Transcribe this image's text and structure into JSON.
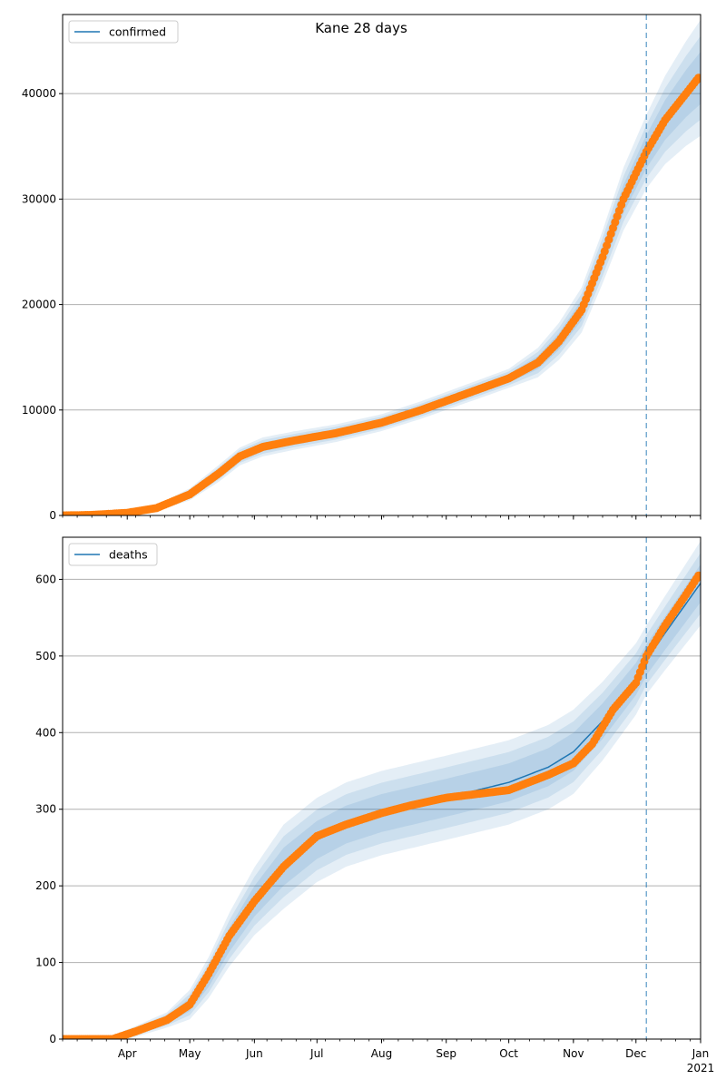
{
  "title": "Kane 28 days",
  "colors": {
    "line": "#1f77b4",
    "points": "#ff7f0e",
    "band": "#1f77b4",
    "grid": "#b0b0b0",
    "vline": "#1f77b4"
  },
  "x_axis": {
    "month_labels": [
      "Apr",
      "May",
      "Jun",
      "Jul",
      "Aug",
      "Sep",
      "Oct",
      "Nov",
      "Dec",
      "Jan"
    ],
    "year_label": "2021"
  },
  "chart_data": [
    {
      "type": "line",
      "title": "Kane 28 days",
      "series": [
        {
          "name": "confirmed"
        }
      ],
      "legend": "top-left",
      "grid": "y",
      "xlim": [
        "2020-03-01",
        "2021-01-01"
      ],
      "ylim": [
        0,
        47500
      ],
      "yticks": [
        0,
        10000,
        20000,
        30000,
        40000
      ],
      "forecast_start": "2020-12-06",
      "fit_knots": [
        [
          "2020-03-01",
          0
        ],
        [
          "2020-03-15",
          50
        ],
        [
          "2020-04-01",
          250
        ],
        [
          "2020-04-15",
          700
        ],
        [
          "2020-05-01",
          2000
        ],
        [
          "2020-05-15",
          4000
        ],
        [
          "2020-05-25",
          5600
        ],
        [
          "2020-06-05",
          6500
        ],
        [
          "2020-06-20",
          7100
        ],
        [
          "2020-07-10",
          7800
        ],
        [
          "2020-08-01",
          8800
        ],
        [
          "2020-08-20",
          10000
        ],
        [
          "2020-09-10",
          11500
        ],
        [
          "2020-10-01",
          13000
        ],
        [
          "2020-10-15",
          14500
        ],
        [
          "2020-10-25",
          16500
        ],
        [
          "2020-11-05",
          19500
        ],
        [
          "2020-11-15",
          24500
        ],
        [
          "2020-11-25",
          30000
        ],
        [
          "2020-12-06",
          34500
        ],
        [
          "2020-12-15",
          37500
        ],
        [
          "2020-12-25",
          40000
        ],
        [
          "2021-01-01",
          41500
        ]
      ],
      "observed_knots": [
        [
          "2020-03-01",
          0
        ],
        [
          "2020-03-15",
          50
        ],
        [
          "2020-04-01",
          250
        ],
        [
          "2020-04-15",
          700
        ],
        [
          "2020-05-01",
          2000
        ],
        [
          "2020-05-15",
          4000
        ],
        [
          "2020-05-25",
          5600
        ],
        [
          "2020-06-05",
          6500
        ],
        [
          "2020-06-20",
          7100
        ],
        [
          "2020-07-10",
          7800
        ],
        [
          "2020-08-01",
          8800
        ],
        [
          "2020-08-20",
          10000
        ],
        [
          "2020-09-10",
          11500
        ],
        [
          "2020-10-01",
          13000
        ],
        [
          "2020-10-15",
          14500
        ],
        [
          "2020-10-25",
          16500
        ],
        [
          "2020-11-05",
          19500
        ],
        [
          "2020-11-15",
          24500
        ],
        [
          "2020-11-25",
          30000
        ],
        [
          "2020-12-06",
          34500
        ],
        [
          "2020-12-15",
          37500
        ],
        [
          "2020-12-25",
          40000
        ],
        [
          "2020-12-31",
          41500
        ]
      ],
      "band_halfwidths": [
        [
          "2020-03-01",
          0
        ],
        [
          "2020-04-15",
          300
        ],
        [
          "2020-05-15",
          800
        ],
        [
          "2020-06-05",
          900
        ],
        [
          "2020-08-01",
          800
        ],
        [
          "2020-10-01",
          900
        ],
        [
          "2020-11-15",
          2500
        ],
        [
          "2020-12-06",
          3500
        ],
        [
          "2021-01-01",
          5500
        ]
      ]
    },
    {
      "type": "line",
      "series": [
        {
          "name": "deaths"
        }
      ],
      "legend": "top-left",
      "grid": "y",
      "xlim": [
        "2020-03-01",
        "2021-01-01"
      ],
      "ylim": [
        0,
        655
      ],
      "yticks": [
        0,
        100,
        200,
        300,
        400,
        500,
        600
      ],
      "forecast_start": "2020-12-06",
      "fit_knots": [
        [
          "2020-03-01",
          0
        ],
        [
          "2020-03-25",
          0
        ],
        [
          "2020-04-05",
          10
        ],
        [
          "2020-04-20",
          25
        ],
        [
          "2020-05-01",
          45
        ],
        [
          "2020-05-10",
          80
        ],
        [
          "2020-05-20",
          130
        ],
        [
          "2020-06-01",
          180
        ],
        [
          "2020-06-15",
          225
        ],
        [
          "2020-07-01",
          260
        ],
        [
          "2020-07-15",
          280
        ],
        [
          "2020-08-01",
          295
        ],
        [
          "2020-09-01",
          315
        ],
        [
          "2020-10-01",
          335
        ],
        [
          "2020-10-20",
          355
        ],
        [
          "2020-11-01",
          375
        ],
        [
          "2020-11-15",
          415
        ],
        [
          "2020-12-01",
          470
        ],
        [
          "2020-12-06",
          495
        ],
        [
          "2020-12-15",
          530
        ],
        [
          "2021-01-01",
          595
        ]
      ],
      "observed_knots": [
        [
          "2020-03-01",
          0
        ],
        [
          "2020-03-25",
          0
        ],
        [
          "2020-04-05",
          10
        ],
        [
          "2020-04-20",
          25
        ],
        [
          "2020-05-01",
          45
        ],
        [
          "2020-05-10",
          85
        ],
        [
          "2020-05-20",
          135
        ],
        [
          "2020-06-01",
          180
        ],
        [
          "2020-06-15",
          225
        ],
        [
          "2020-07-01",
          265
        ],
        [
          "2020-07-15",
          280
        ],
        [
          "2020-08-01",
          295
        ],
        [
          "2020-08-15",
          305
        ],
        [
          "2020-09-01",
          315
        ],
        [
          "2020-10-01",
          325
        ],
        [
          "2020-10-20",
          345
        ],
        [
          "2020-11-01",
          360
        ],
        [
          "2020-11-10",
          385
        ],
        [
          "2020-11-20",
          430
        ],
        [
          "2020-12-01",
          465
        ],
        [
          "2020-12-06",
          500
        ],
        [
          "2020-12-15",
          540
        ],
        [
          "2020-12-25",
          580
        ],
        [
          "2020-12-31",
          605
        ]
      ],
      "band_halfwidths": [
        [
          "2020-03-01",
          0
        ],
        [
          "2020-04-20",
          10
        ],
        [
          "2020-05-20",
          35
        ],
        [
          "2020-06-15",
          55
        ],
        [
          "2020-08-01",
          55
        ],
        [
          "2020-10-01",
          55
        ],
        [
          "2020-11-01",
          55
        ],
        [
          "2020-11-20",
          50
        ],
        [
          "2020-12-06",
          45
        ],
        [
          "2021-01-01",
          55
        ]
      ]
    }
  ]
}
